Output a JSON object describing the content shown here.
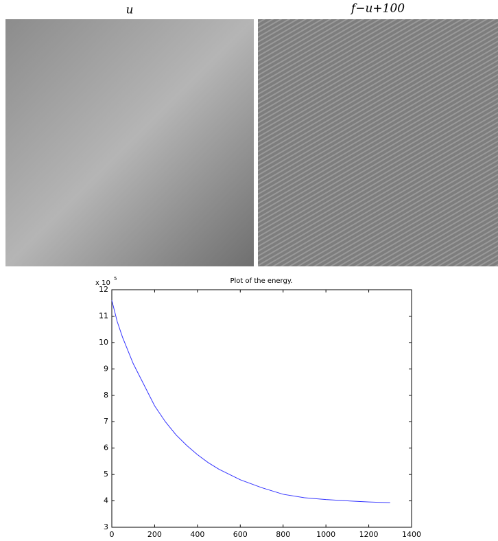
{
  "panels": [
    {
      "title": "u"
    },
    {
      "title": "f−u+100"
    }
  ],
  "chart_data": {
    "type": "line",
    "title": "Plot of the energy.",
    "y_multiplier": "x 10",
    "y_multiplier_exponent": "5",
    "x": [
      0,
      25,
      50,
      100,
      150,
      200,
      250,
      300,
      350,
      400,
      450,
      500,
      600,
      700,
      800,
      900,
      1000,
      1100,
      1200,
      1300
    ],
    "series": [
      {
        "color": "#3333ff",
        "values": [
          11.6,
          10.8,
          10.2,
          9.2,
          8.4,
          7.6,
          7.0,
          6.5,
          6.1,
          5.75,
          5.45,
          5.2,
          4.8,
          4.5,
          4.25,
          4.12,
          4.05,
          4.0,
          3.96,
          3.93
        ]
      }
    ],
    "xlim": [
      0,
      1400
    ],
    "xticks": [
      0,
      200,
      400,
      600,
      800,
      1000,
      1200,
      1400
    ],
    "ylim": [
      3,
      12
    ],
    "yticks": [
      3,
      4,
      5,
      6,
      7,
      8,
      9,
      10,
      11,
      12
    ]
  }
}
